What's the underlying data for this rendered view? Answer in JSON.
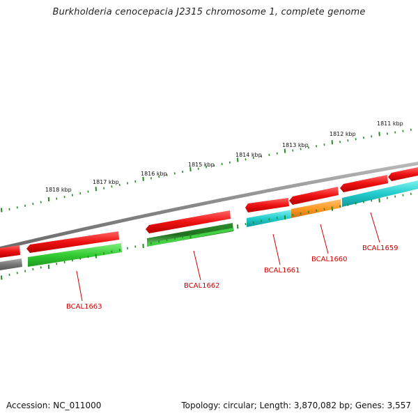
{
  "title": "Burkholderia cenocepacia J2315 chromosome 1, complete genome",
  "footer": {
    "accession": "Accession: NC_011000",
    "stats": "Topology: circular; Length: 3,870,082 bp; Genes: 3,557"
  },
  "scale_labels": [
    "1811 kbp",
    "1812 kbp",
    "1813 kbp",
    "1814 kbp",
    "1815 kbp",
    "1816 kbp",
    "1817 kbp",
    "1818 kbp"
  ],
  "gene_labels": [
    "BCAL1659",
    "BCAL1660",
    "BCAL1661",
    "BCAL1662",
    "BCAL1663"
  ],
  "colors": {
    "cds": "#ee1111",
    "backbone": "#888888",
    "tick": "#228b22",
    "label": "#cc0000",
    "cyan": "#22cccc",
    "orange": "#ff9922",
    "green": "#33cc33",
    "dark_green": "#2e8b2e",
    "gray": "#777777"
  }
}
